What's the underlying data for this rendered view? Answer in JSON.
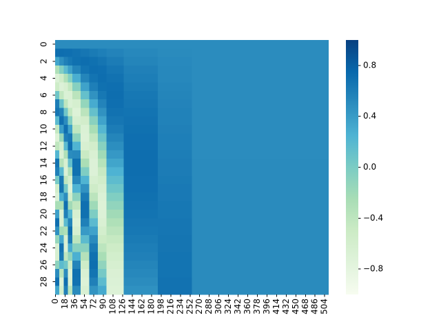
{
  "chart_data": {
    "type": "heatmap",
    "y_categories": [
      0,
      null,
      2,
      null,
      4,
      null,
      6,
      null,
      8,
      null,
      10,
      null,
      12,
      null,
      14,
      null,
      16,
      null,
      18,
      null,
      20,
      null,
      22,
      null,
      24,
      null,
      26,
      null,
      28,
      null
    ],
    "x_edges": [
      0,
      8,
      16,
      24,
      32,
      48,
      64,
      80,
      96,
      128,
      192,
      256,
      512
    ],
    "xlim": [
      0,
      512
    ],
    "xticks": [
      0,
      18,
      36,
      54,
      72,
      90,
      108,
      126,
      144,
      162,
      180,
      198,
      216,
      234,
      252,
      270,
      288,
      306,
      324,
      342,
      360,
      378,
      396,
      414,
      432,
      450,
      468,
      486,
      504
    ],
    "values": [
      [
        0.5,
        0.5,
        0.5,
        0.5,
        0.5,
        0.5,
        0.5,
        0.5,
        0.5,
        0.5,
        0.5,
        0.5
      ],
      [
        0.7,
        0.71,
        0.7,
        0.7,
        0.68,
        0.65,
        0.62,
        0.59,
        0.56,
        0.53,
        0.51,
        0.5
      ],
      [
        0.34,
        0.48,
        0.58,
        0.64,
        0.69,
        0.71,
        0.69,
        0.66,
        0.61,
        0.55,
        0.52,
        0.5
      ],
      [
        -0.3,
        -0.04,
        0.18,
        0.37,
        0.55,
        0.67,
        0.71,
        0.7,
        0.65,
        0.58,
        0.53,
        0.5
      ],
      [
        -0.69,
        -0.54,
        -0.3,
        -0.04,
        0.28,
        0.55,
        0.67,
        0.71,
        0.68,
        0.6,
        0.53,
        0.5
      ],
      [
        -0.53,
        -0.7,
        -0.64,
        -0.44,
        -0.06,
        0.36,
        0.59,
        0.69,
        0.7,
        0.62,
        0.54,
        0.5
      ],
      [
        0.06,
        -0.43,
        -0.68,
        -0.67,
        -0.38,
        0.12,
        0.46,
        0.64,
        0.71,
        0.64,
        0.55,
        0.5
      ],
      [
        0.6,
        0.1,
        -0.41,
        -0.68,
        -0.61,
        -0.14,
        0.3,
        0.56,
        0.7,
        0.65,
        0.56,
        0.5
      ],
      [
        0.66,
        0.57,
        0.06,
        -0.44,
        -0.71,
        -0.38,
        0.12,
        0.46,
        0.68,
        0.67,
        0.57,
        0.5
      ],
      [
        0.18,
        0.7,
        0.5,
        -0.04,
        -0.63,
        -0.57,
        -0.08,
        0.35,
        0.65,
        0.68,
        0.57,
        0.5
      ],
      [
        -0.44,
        0.39,
        0.7,
        0.36,
        -0.42,
        -0.68,
        -0.26,
        0.21,
        0.61,
        0.69,
        0.58,
        0.5
      ],
      [
        -0.71,
        -0.16,
        0.58,
        0.64,
        -0.1,
        -0.7,
        -0.43,
        0.07,
        0.55,
        0.7,
        0.59,
        0.5
      ],
      [
        -0.41,
        -0.61,
        0.18,
        0.7,
        0.24,
        -0.64,
        -0.57,
        -0.07,
        0.49,
        0.7,
        0.59,
        0.5
      ],
      [
        0.22,
        -0.68,
        -0.3,
        0.5,
        0.52,
        -0.48,
        -0.66,
        -0.21,
        0.42,
        0.71,
        0.6,
        0.5
      ],
      [
        0.67,
        -0.34,
        -0.64,
        0.13,
        0.69,
        -0.27,
        -0.7,
        -0.35,
        0.34,
        0.71,
        0.61,
        0.51
      ],
      [
        0.58,
        0.21,
        -0.68,
        -0.29,
        0.69,
        -0.02,
        -0.7,
        -0.47,
        0.25,
        0.71,
        0.61,
        0.51
      ],
      [
        0.02,
        0.63,
        -0.41,
        -0.6,
        0.53,
        0.24,
        -0.63,
        -0.56,
        0.16,
        0.7,
        0.62,
        0.51
      ],
      [
        -0.56,
        0.66,
        0.06,
        -0.71,
        0.25,
        0.46,
        -0.53,
        -0.64,
        0.07,
        0.7,
        0.63,
        0.51
      ],
      [
        -0.68,
        0.28,
        0.5,
        -0.56,
        -0.09,
        0.62,
        -0.38,
        -0.69,
        -0.03,
        0.69,
        0.63,
        0.51
      ],
      [
        -0.26,
        -0.27,
        0.7,
        -0.21,
        -0.41,
        0.7,
        -0.2,
        -0.71,
        -0.12,
        0.68,
        0.64,
        0.51
      ],
      [
        0.37,
        -0.66,
        0.58,
        0.21,
        -0.63,
        0.69,
        -0.01,
        -0.7,
        -0.21,
        0.67,
        0.64,
        0.51
      ],
      [
        0.7,
        -0.64,
        0.18,
        0.55,
        -0.71,
        0.58,
        0.18,
        -0.66,
        -0.3,
        0.65,
        0.65,
        0.51
      ],
      [
        0.47,
        -0.23,
        -0.3,
        0.71,
        -0.62,
        0.41,
        0.36,
        -0.59,
        -0.38,
        0.64,
        0.65,
        0.51
      ],
      [
        -0.15,
        0.32,
        -0.64,
        0.61,
        -0.39,
        0.17,
        0.51,
        -0.5,
        -0.46,
        0.62,
        0.66,
        0.51
      ],
      [
        -0.64,
        0.68,
        -0.68,
        0.29,
        -0.07,
        -0.08,
        0.62,
        -0.39,
        -0.52,
        0.6,
        0.66,
        0.51
      ],
      [
        -0.62,
        0.62,
        -0.41,
        -0.12,
        0.27,
        -0.33,
        0.69,
        -0.26,
        -0.58,
        0.58,
        0.67,
        0.51
      ],
      [
        -0.1,
        0.17,
        0.06,
        -0.5,
        0.55,
        -0.53,
        0.71,
        -0.12,
        -0.63,
        0.55,
        0.67,
        0.51
      ],
      [
        0.5,
        -0.37,
        0.5,
        -0.69,
        0.69,
        -0.66,
        0.67,
        0.03,
        -0.67,
        0.53,
        0.67,
        0.51
      ],
      [
        0.7,
        -0.69,
        0.7,
        -0.65,
        0.68,
        -0.71,
        0.58,
        0.17,
        -0.69,
        0.5,
        0.68,
        0.51
      ],
      [
        0.33,
        -0.58,
        0.58,
        -0.37,
        0.51,
        -0.66,
        0.45,
        0.31,
        -0.71,
        0.47,
        0.68,
        0.51
      ]
    ],
    "colormap": [
      "#f7fcf0",
      "#e0f3db",
      "#ccebc5",
      "#a8ddb5",
      "#7bccc4",
      "#4eb3d3",
      "#2b8cbe",
      "#0868ac",
      "#084081"
    ],
    "colorbar": {
      "lim": [
        -1,
        1
      ],
      "ticks": [
        0.8,
        0.4,
        {
          "value": 0,
          "label": "0.0"
        },
        {
          "value": -0.4,
          "label": "−0.4"
        },
        {
          "value": -0.8,
          "label": "−0.8"
        }
      ]
    }
  }
}
